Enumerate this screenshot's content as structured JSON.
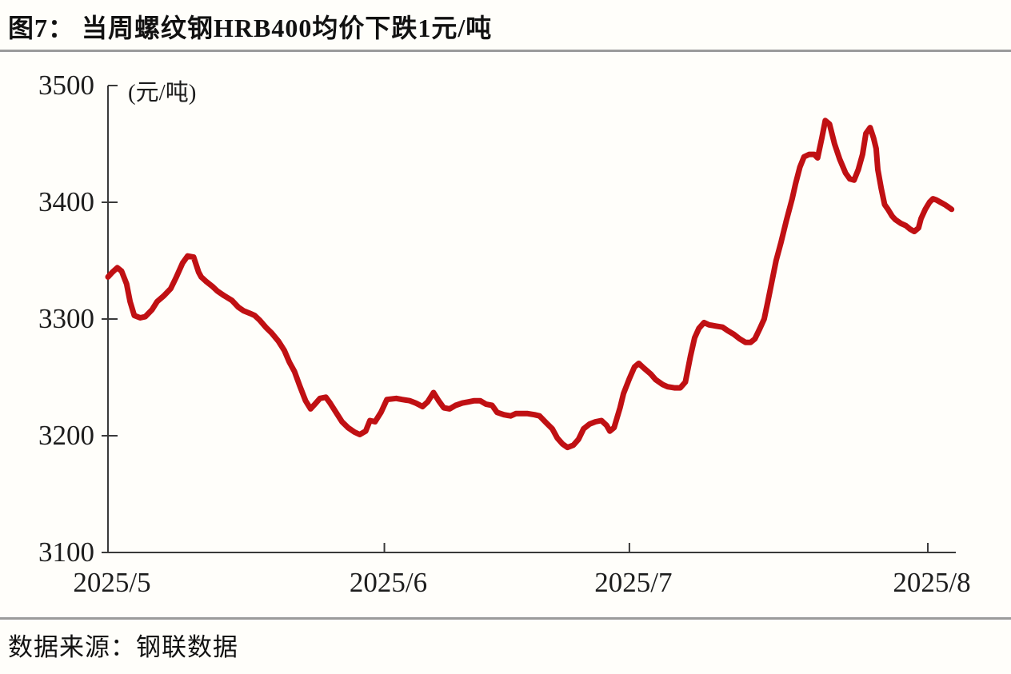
{
  "header": {
    "title": "图7： 当周螺纹钢HRB400均价下跌1元/吨"
  },
  "footer": {
    "source_label": "数据来源：钢联数据"
  },
  "chart_data": {
    "type": "line",
    "title": "当周螺纹钢HRB400均价下跌1元/吨",
    "unit_label": "(元/吨)",
    "xlabel": "",
    "ylabel": "元/吨",
    "ylim": [
      3100,
      3500
    ],
    "y_ticks": [
      3500,
      3400,
      3300,
      3200,
      3100
    ],
    "x_ticks": [
      {
        "label": "2025/5",
        "pos": 0.0
      },
      {
        "label": "2025/6",
        "pos": 0.326
      },
      {
        "label": "2025/7",
        "pos": 0.615
      },
      {
        "label": "2025/8",
        "pos": 0.967
      }
    ],
    "grid": false,
    "legend": null,
    "line_color": "#c01013",
    "axis_color": "#3a3a3a",
    "text_color": "#1d1d1d",
    "series": [
      {
        "name": "螺纹钢HRB400均价",
        "points": [
          [
            0.0,
            3336
          ],
          [
            0.005,
            3340
          ],
          [
            0.011,
            3344
          ],
          [
            0.016,
            3341
          ],
          [
            0.022,
            3330
          ],
          [
            0.026,
            3315
          ],
          [
            0.031,
            3303
          ],
          [
            0.038,
            3301
          ],
          [
            0.044,
            3302
          ],
          [
            0.052,
            3308
          ],
          [
            0.058,
            3315
          ],
          [
            0.066,
            3320
          ],
          [
            0.074,
            3326
          ],
          [
            0.08,
            3335
          ],
          [
            0.088,
            3348
          ],
          [
            0.094,
            3354
          ],
          [
            0.101,
            3353
          ],
          [
            0.107,
            3340
          ],
          [
            0.11,
            3336
          ],
          [
            0.116,
            3332
          ],
          [
            0.123,
            3328
          ],
          [
            0.129,
            3324
          ],
          [
            0.137,
            3320
          ],
          [
            0.146,
            3316
          ],
          [
            0.154,
            3310
          ],
          [
            0.16,
            3307
          ],
          [
            0.167,
            3305
          ],
          [
            0.173,
            3303
          ],
          [
            0.179,
            3299
          ],
          [
            0.186,
            3293
          ],
          [
            0.193,
            3288
          ],
          [
            0.201,
            3281
          ],
          [
            0.208,
            3273
          ],
          [
            0.214,
            3263
          ],
          [
            0.22,
            3255
          ],
          [
            0.226,
            3243
          ],
          [
            0.233,
            3230
          ],
          [
            0.239,
            3223
          ],
          [
            0.244,
            3227
          ],
          [
            0.25,
            3232
          ],
          [
            0.257,
            3233
          ],
          [
            0.262,
            3228
          ],
          [
            0.269,
            3220
          ],
          [
            0.276,
            3212
          ],
          [
            0.283,
            3207
          ],
          [
            0.291,
            3203
          ],
          [
            0.297,
            3201
          ],
          [
            0.304,
            3204
          ],
          [
            0.309,
            3213
          ],
          [
            0.315,
            3212
          ],
          [
            0.322,
            3220
          ],
          [
            0.329,
            3231
          ],
          [
            0.34,
            3232
          ],
          [
            0.347,
            3231
          ],
          [
            0.356,
            3230
          ],
          [
            0.363,
            3228
          ],
          [
            0.371,
            3225
          ],
          [
            0.377,
            3229
          ],
          [
            0.384,
            3237
          ],
          [
            0.39,
            3230
          ],
          [
            0.396,
            3224
          ],
          [
            0.403,
            3223
          ],
          [
            0.41,
            3226
          ],
          [
            0.418,
            3228
          ],
          [
            0.425,
            3229
          ],
          [
            0.432,
            3230
          ],
          [
            0.439,
            3230
          ],
          [
            0.446,
            3227
          ],
          [
            0.453,
            3226
          ],
          [
            0.459,
            3220
          ],
          [
            0.467,
            3218
          ],
          [
            0.475,
            3217
          ],
          [
            0.481,
            3219
          ],
          [
            0.488,
            3219
          ],
          [
            0.495,
            3219
          ],
          [
            0.503,
            3218
          ],
          [
            0.509,
            3217
          ],
          [
            0.517,
            3211
          ],
          [
            0.524,
            3206
          ],
          [
            0.53,
            3198
          ],
          [
            0.536,
            3193
          ],
          [
            0.542,
            3190
          ],
          [
            0.549,
            3192
          ],
          [
            0.555,
            3197
          ],
          [
            0.561,
            3206
          ],
          [
            0.568,
            3210
          ],
          [
            0.575,
            3212
          ],
          [
            0.582,
            3213
          ],
          [
            0.588,
            3209
          ],
          [
            0.592,
            3204
          ],
          [
            0.597,
            3207
          ],
          [
            0.604,
            3224
          ],
          [
            0.608,
            3236
          ],
          [
            0.615,
            3249
          ],
          [
            0.621,
            3259
          ],
          [
            0.626,
            3262
          ],
          [
            0.632,
            3258
          ],
          [
            0.64,
            3253
          ],
          [
            0.646,
            3248
          ],
          [
            0.654,
            3244
          ],
          [
            0.66,
            3242
          ],
          [
            0.668,
            3241
          ],
          [
            0.675,
            3241
          ],
          [
            0.681,
            3246
          ],
          [
            0.687,
            3268
          ],
          [
            0.692,
            3284
          ],
          [
            0.697,
            3292
          ],
          [
            0.703,
            3297
          ],
          [
            0.709,
            3295
          ],
          [
            0.717,
            3294
          ],
          [
            0.725,
            3293
          ],
          [
            0.731,
            3290
          ],
          [
            0.738,
            3287
          ],
          [
            0.745,
            3283
          ],
          [
            0.752,
            3280
          ],
          [
            0.758,
            3280
          ],
          [
            0.763,
            3283
          ],
          [
            0.769,
            3292
          ],
          [
            0.774,
            3300
          ],
          [
            0.778,
            3314
          ],
          [
            0.783,
            3332
          ],
          [
            0.788,
            3350
          ],
          [
            0.794,
            3366
          ],
          [
            0.8,
            3384
          ],
          [
            0.807,
            3403
          ],
          [
            0.811,
            3416
          ],
          [
            0.816,
            3430
          ],
          [
            0.821,
            3439
          ],
          [
            0.827,
            3441
          ],
          [
            0.833,
            3441
          ],
          [
            0.837,
            3438
          ],
          [
            0.842,
            3455
          ],
          [
            0.846,
            3470
          ],
          [
            0.851,
            3467
          ],
          [
            0.857,
            3450
          ],
          [
            0.863,
            3437
          ],
          [
            0.87,
            3425
          ],
          [
            0.875,
            3420
          ],
          [
            0.88,
            3419
          ],
          [
            0.885,
            3428
          ],
          [
            0.89,
            3441
          ],
          [
            0.894,
            3459
          ],
          [
            0.899,
            3464
          ],
          [
            0.903,
            3455
          ],
          [
            0.906,
            3446
          ],
          [
            0.908,
            3428
          ],
          [
            0.912,
            3412
          ],
          [
            0.916,
            3398
          ],
          [
            0.92,
            3394
          ],
          [
            0.925,
            3388
          ],
          [
            0.929,
            3385
          ],
          [
            0.935,
            3382
          ],
          [
            0.941,
            3380
          ],
          [
            0.946,
            3377
          ],
          [
            0.951,
            3375
          ],
          [
            0.956,
            3378
          ],
          [
            0.959,
            3386
          ],
          [
            0.964,
            3394
          ],
          [
            0.969,
            3400
          ],
          [
            0.973,
            3403
          ],
          [
            0.977,
            3402
          ],
          [
            0.982,
            3400
          ],
          [
            0.987,
            3398
          ],
          [
            0.991,
            3396
          ],
          [
            0.995,
            3394
          ]
        ]
      }
    ]
  }
}
